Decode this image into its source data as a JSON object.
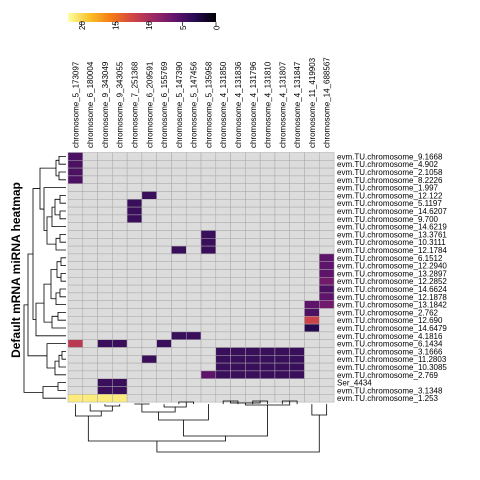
{
  "chart_data": {
    "type": "heatmap",
    "title": "",
    "ylabel": "Default mRNA miRNA heatmap",
    "colorbar": {
      "ticks": [
        20,
        15,
        10,
        5,
        0
      ],
      "range": [
        0,
        22
      ],
      "colormap": "inferno",
      "stops": [
        "#fcffa4",
        "#fac228",
        "#f57d15",
        "#d44842",
        "#9f2a63",
        "#65156e",
        "#280b53",
        "#000004"
      ]
    },
    "columns": [
      "chromosome_5_173097",
      "chromosome_6_180004",
      "chromosome_9_343049",
      "chromosome_9_343055",
      "chromosome_7_251368",
      "chromosome_6_209591",
      "chromosome_6_155769",
      "chromosome_5_147390",
      "chromosome_5_147456",
      "chromosome_5_135958",
      "chromosome_4_131850",
      "chromosome_4_131836",
      "chromosome_4_131796",
      "chromosome_4_131810",
      "chromosome_4_131807",
      "chromosome_4_131847",
      "chromosome_11_419903",
      "chromosome_14_688567"
    ],
    "rows": [
      "evm.TU.chromosome_9.1668",
      "evm.TU.chromosome_4.902",
      "evm.TU.chromosome_2.1058",
      "evm.TU.chromosome_8.2226",
      "evm.TU.chromosome_1.997",
      "evm.TU.chromosome_12.122",
      "evm.TU.chromosome_5.1197",
      "evm.TU.chromosome_14.6207",
      "evm.TU.chromosome_9.700",
      "evm.TU.chromosome_14.6219",
      "evm.TU.chromosome_13.3761",
      "evm.TU.chromosome_10.3111",
      "evm.TU.chromosome_12.1784",
      "evm.TU.chromosome_6.1512",
      "evm.TU.chromosome_12.2940",
      "evm.TU.chromosome_13.2897",
      "evm.TU.chromosome_12.2852",
      "evm.TU.chromosome_14.6624",
      "evm.TU.chromosome_12.1878",
      "evm.TU.chromosome_13.1842",
      "evm.TU.chromosome_2.762",
      "evm.TU.chromosome_12.690",
      "evm.TU.chromosome_14.6479",
      "evm.TU.chromosome_4.1816",
      "evm.TU.chromosome_6.1434",
      "evm.TU.chromosome_3.1666",
      "evm.TU.chromosome_11.2803",
      "evm.TU.chromosome_10.3085",
      "evm.TU.chromosome_2.769",
      "Ser_4434",
      "evm.TU.chromosome_3.1348",
      "evm.TU.chromosome_1.253"
    ],
    "missing_color": "#dcdcdc",
    "cells": [
      [
        0,
        0,
        5
      ],
      [
        1,
        0,
        5
      ],
      [
        2,
        0,
        5
      ],
      [
        3,
        0,
        5
      ],
      [
        5,
        5,
        4
      ],
      [
        6,
        4,
        4
      ],
      [
        7,
        4,
        4
      ],
      [
        8,
        4,
        4
      ],
      [
        10,
        9,
        4
      ],
      [
        11,
        9,
        4
      ],
      [
        12,
        7,
        4
      ],
      [
        12,
        9,
        4
      ],
      [
        13,
        17,
        6
      ],
      [
        14,
        17,
        6
      ],
      [
        15,
        17,
        6
      ],
      [
        16,
        17,
        7
      ],
      [
        17,
        17,
        5
      ],
      [
        18,
        17,
        6
      ],
      [
        19,
        16,
        6
      ],
      [
        19,
        17,
        7
      ],
      [
        20,
        16,
        5
      ],
      [
        21,
        16,
        12
      ],
      [
        22,
        16,
        3
      ],
      [
        23,
        7,
        4
      ],
      [
        23,
        8,
        4
      ],
      [
        24,
        0,
        11
      ],
      [
        24,
        2,
        4
      ],
      [
        24,
        3,
        4
      ],
      [
        24,
        6,
        4
      ],
      [
        25,
        10,
        4
      ],
      [
        25,
        11,
        4
      ],
      [
        25,
        12,
        4
      ],
      [
        25,
        13,
        4
      ],
      [
        25,
        14,
        4
      ],
      [
        25,
        15,
        4
      ],
      [
        26,
        5,
        4
      ],
      [
        26,
        10,
        4
      ],
      [
        26,
        11,
        4
      ],
      [
        26,
        12,
        4
      ],
      [
        26,
        13,
        4
      ],
      [
        26,
        14,
        4
      ],
      [
        26,
        15,
        4
      ],
      [
        27,
        10,
        4
      ],
      [
        27,
        11,
        4
      ],
      [
        27,
        12,
        4
      ],
      [
        27,
        13,
        4
      ],
      [
        27,
        14,
        4
      ],
      [
        27,
        15,
        4
      ],
      [
        28,
        9,
        6
      ],
      [
        28,
        10,
        4
      ],
      [
        28,
        11,
        4
      ],
      [
        28,
        12,
        4
      ],
      [
        28,
        13,
        4
      ],
      [
        28,
        14,
        4
      ],
      [
        28,
        15,
        4
      ],
      [
        29,
        2,
        4
      ],
      [
        29,
        3,
        4
      ],
      [
        30,
        2,
        4
      ],
      [
        30,
        3,
        4
      ],
      [
        31,
        0,
        21
      ],
      [
        31,
        1,
        21
      ],
      [
        31,
        2,
        21
      ],
      [
        31,
        3,
        21
      ]
    ],
    "row_dendrogram": true,
    "column_dendrogram": true
  }
}
